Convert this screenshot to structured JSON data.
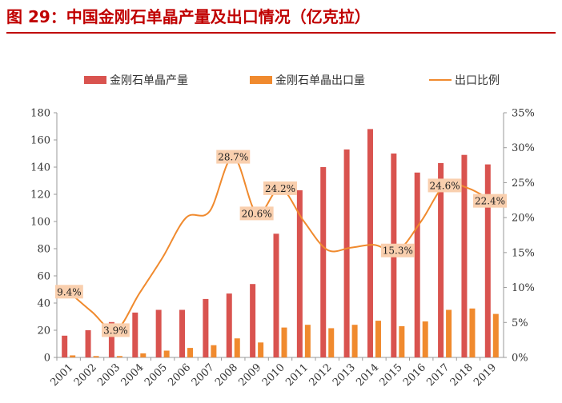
{
  "header": {
    "title": "图 29：中国金刚石单晶产量及出口情况（亿克拉）"
  },
  "chart_data": {
    "type": "bar",
    "title": "图 29：中国金刚石单晶产量及出口情况（亿克拉）",
    "categories": [
      "2001",
      "2002",
      "2003",
      "2004",
      "2005",
      "2006",
      "2007",
      "2008",
      "2009",
      "2010",
      "2011",
      "2012",
      "2013",
      "2014",
      "2015",
      "2016",
      "2017",
      "2018",
      "2019"
    ],
    "series": [
      {
        "name": "金刚石单晶产量",
        "type": "bar",
        "axis": "left",
        "color": "#d9534f",
        "values": [
          16,
          20,
          26,
          33,
          35,
          35,
          43,
          47,
          54,
          91,
          123,
          140,
          153,
          168,
          150,
          136,
          143,
          149,
          142
        ]
      },
      {
        "name": "金刚石单晶出口量",
        "type": "bar",
        "axis": "right-scale-none",
        "color": "#f08a2e",
        "values": [
          1.5,
          1,
          1,
          3,
          5,
          7,
          9,
          14,
          11,
          22,
          24,
          21.5,
          24,
          27,
          23,
          26.5,
          35,
          36,
          32
        ]
      },
      {
        "name": "出口比例",
        "type": "line",
        "axis": "right",
        "color": "#f08a2e",
        "values": [
          9.4,
          6.5,
          3.9,
          9.1,
          14.3,
          20.0,
          20.9,
          28.7,
          20.6,
          24.2,
          19.5,
          15.4,
          15.7,
          16.1,
          15.3,
          19.5,
          24.6,
          24.2,
          22.4
        ]
      }
    ],
    "data_labels": [
      {
        "category": "2001",
        "text": "9.4%"
      },
      {
        "category": "2003",
        "text": "3.9%"
      },
      {
        "category": "2008",
        "text": "28.7%"
      },
      {
        "category": "2009",
        "text": "20.6%"
      },
      {
        "category": "2010",
        "text": "24.2%"
      },
      {
        "category": "2015",
        "text": "15.3%"
      },
      {
        "category": "2017",
        "text": "24.6%"
      },
      {
        "category": "2019",
        "text": "22.4%"
      }
    ],
    "left_axis": {
      "ylim": [
        0,
        180
      ],
      "ticks": [
        "0",
        "20",
        "40",
        "60",
        "80",
        "100",
        "120",
        "140",
        "160",
        "180"
      ]
    },
    "right_axis": {
      "ylim": [
        0,
        35
      ],
      "ticks": [
        "0%",
        "5%",
        "10%",
        "15%",
        "20%",
        "25%",
        "30%",
        "35%"
      ]
    },
    "legend_position": "top",
    "grid": false,
    "label_box_color": "#f9cfae"
  }
}
